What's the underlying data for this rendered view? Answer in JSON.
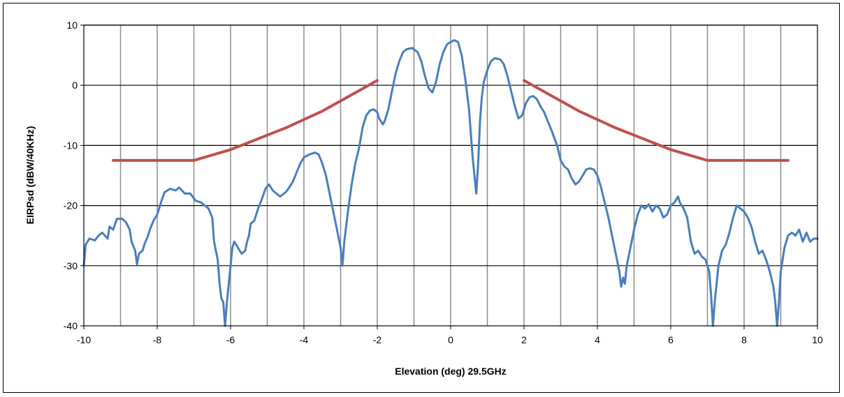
{
  "chart_data": {
    "type": "line",
    "title": "",
    "xlabel": "Elevation (deg) 29.5GHz",
    "ylabel": "EIRPsd (dBW/40KHz)",
    "xlim": [
      -10,
      10
    ],
    "ylim": [
      -40,
      10
    ],
    "x_ticks": [
      -10,
      -8,
      -6,
      -4,
      -2,
      0,
      2,
      4,
      6,
      8,
      10
    ],
    "y_ticks": [
      10,
      0,
      -10,
      -20,
      -30,
      -40
    ],
    "vertical_grid_every": 1,
    "horizontal_grid_every": 10,
    "legend": "none",
    "series": [
      {
        "color": "#4a7ebb",
        "points": [
          [
            -10.0,
            -30.0
          ],
          [
            -9.95,
            -26.5
          ],
          [
            -9.85,
            -25.5
          ],
          [
            -9.7,
            -25.8
          ],
          [
            -9.6,
            -25.0
          ],
          [
            -9.5,
            -24.5
          ],
          [
            -9.35,
            -25.5
          ],
          [
            -9.3,
            -23.5
          ],
          [
            -9.2,
            -24.0
          ],
          [
            -9.1,
            -22.2
          ],
          [
            -8.95,
            -22.2
          ],
          [
            -8.85,
            -22.8
          ],
          [
            -8.75,
            -24.0
          ],
          [
            -8.7,
            -26.0
          ],
          [
            -8.6,
            -27.5
          ],
          [
            -8.55,
            -29.8
          ],
          [
            -8.5,
            -28.0
          ],
          [
            -8.4,
            -27.5
          ],
          [
            -8.35,
            -26.5
          ],
          [
            -8.25,
            -25.0
          ],
          [
            -8.2,
            -24.0
          ],
          [
            -8.1,
            -22.5
          ],
          [
            -8.0,
            -21.5
          ],
          [
            -7.9,
            -19.5
          ],
          [
            -7.8,
            -17.8
          ],
          [
            -7.65,
            -17.2
          ],
          [
            -7.5,
            -17.5
          ],
          [
            -7.4,
            -17.0
          ],
          [
            -7.25,
            -18.0
          ],
          [
            -7.1,
            -18.0
          ],
          [
            -6.95,
            -19.2
          ],
          [
            -6.8,
            -19.5
          ],
          [
            -6.7,
            -20.0
          ],
          [
            -6.6,
            -20.5
          ],
          [
            -6.5,
            -22.0
          ],
          [
            -6.45,
            -26.0
          ],
          [
            -6.35,
            -29.0
          ],
          [
            -6.3,
            -33.0
          ],
          [
            -6.25,
            -35.5
          ],
          [
            -6.2,
            -36.0
          ],
          [
            -6.15,
            -40.0
          ],
          [
            -6.1,
            -36.0
          ],
          [
            -6.05,
            -33.0
          ],
          [
            -6.0,
            -30.0
          ],
          [
            -5.95,
            -27.0
          ],
          [
            -5.9,
            -26.0
          ],
          [
            -5.8,
            -27.0
          ],
          [
            -5.75,
            -27.5
          ],
          [
            -5.7,
            -28.0
          ],
          [
            -5.6,
            -27.5
          ],
          [
            -5.55,
            -26.0
          ],
          [
            -5.5,
            -25.0
          ],
          [
            -5.45,
            -23.0
          ],
          [
            -5.35,
            -22.5
          ],
          [
            -5.25,
            -20.5
          ],
          [
            -5.15,
            -19.0
          ],
          [
            -5.05,
            -17.2
          ],
          [
            -4.95,
            -16.5
          ],
          [
            -4.85,
            -17.5
          ],
          [
            -4.75,
            -18.0
          ],
          [
            -4.65,
            -18.5
          ],
          [
            -4.5,
            -17.8
          ],
          [
            -4.4,
            -17.0
          ],
          [
            -4.3,
            -16.0
          ],
          [
            -4.2,
            -14.5
          ],
          [
            -4.1,
            -13.0
          ],
          [
            -4.0,
            -12.0
          ],
          [
            -3.85,
            -11.5
          ],
          [
            -3.7,
            -11.2
          ],
          [
            -3.6,
            -11.5
          ],
          [
            -3.5,
            -13.0
          ],
          [
            -3.4,
            -15.0
          ],
          [
            -3.3,
            -18.0
          ],
          [
            -3.2,
            -21.0
          ],
          [
            -3.1,
            -24.0
          ],
          [
            -3.0,
            -27.0
          ],
          [
            -2.95,
            -30.0
          ],
          [
            -2.9,
            -26.0
          ],
          [
            -2.8,
            -21.0
          ],
          [
            -2.7,
            -16.5
          ],
          [
            -2.6,
            -13.0
          ],
          [
            -2.5,
            -10.5
          ],
          [
            -2.4,
            -7.0
          ],
          [
            -2.3,
            -5.0
          ],
          [
            -2.2,
            -4.2
          ],
          [
            -2.1,
            -4.0
          ],
          [
            -2.0,
            -4.5
          ],
          [
            -1.95,
            -5.5
          ],
          [
            -1.85,
            -6.5
          ],
          [
            -1.8,
            -6.0
          ],
          [
            -1.7,
            -4.0
          ],
          [
            -1.6,
            -1.0
          ],
          [
            -1.5,
            2.0
          ],
          [
            -1.4,
            4.0
          ],
          [
            -1.3,
            5.5
          ],
          [
            -1.2,
            6.0
          ],
          [
            -1.05,
            6.2
          ],
          [
            -0.9,
            5.5
          ],
          [
            -0.8,
            4.0
          ],
          [
            -0.7,
            1.5
          ],
          [
            -0.6,
            -0.5
          ],
          [
            -0.5,
            -1.2
          ],
          [
            -0.4,
            0.5
          ],
          [
            -0.3,
            3.5
          ],
          [
            -0.2,
            5.5
          ],
          [
            -0.1,
            6.8
          ],
          [
            0.0,
            7.2
          ],
          [
            0.1,
            7.5
          ],
          [
            0.2,
            7.2
          ],
          [
            0.3,
            5.0
          ],
          [
            0.4,
            1.0
          ],
          [
            0.5,
            -4.0
          ],
          [
            0.55,
            -8.0
          ],
          [
            0.6,
            -12.0
          ],
          [
            0.65,
            -15.0
          ],
          [
            0.7,
            -18.0
          ],
          [
            0.75,
            -13.0
          ],
          [
            0.8,
            -6.0
          ],
          [
            0.85,
            -2.0
          ],
          [
            0.9,
            0.5
          ],
          [
            1.0,
            2.5
          ],
          [
            1.1,
            4.0
          ],
          [
            1.2,
            4.5
          ],
          [
            1.35,
            4.3
          ],
          [
            1.45,
            3.5
          ],
          [
            1.55,
            1.5
          ],
          [
            1.65,
            -1.0
          ],
          [
            1.75,
            -3.5
          ],
          [
            1.85,
            -5.5
          ],
          [
            1.95,
            -5.0
          ],
          [
            2.05,
            -3.0
          ],
          [
            2.15,
            -2.0
          ],
          [
            2.25,
            -1.8
          ],
          [
            2.35,
            -2.3
          ],
          [
            2.45,
            -3.5
          ],
          [
            2.55,
            -4.5
          ],
          [
            2.65,
            -6.0
          ],
          [
            2.75,
            -7.5
          ],
          [
            2.9,
            -10.0
          ],
          [
            3.0,
            -12.5
          ],
          [
            3.1,
            -13.5
          ],
          [
            3.2,
            -14.0
          ],
          [
            3.3,
            -15.5
          ],
          [
            3.4,
            -16.5
          ],
          [
            3.5,
            -16.0
          ],
          [
            3.6,
            -15.0
          ],
          [
            3.7,
            -14.0
          ],
          [
            3.8,
            -13.8
          ],
          [
            3.9,
            -14.0
          ],
          [
            4.0,
            -15.0
          ],
          [
            4.1,
            -17.0
          ],
          [
            4.2,
            -19.5
          ],
          [
            4.3,
            -22.0
          ],
          [
            4.4,
            -25.0
          ],
          [
            4.5,
            -28.0
          ],
          [
            4.6,
            -31.0
          ],
          [
            4.65,
            -33.5
          ],
          [
            4.7,
            -32.0
          ],
          [
            4.75,
            -33.0
          ],
          [
            4.8,
            -30.0
          ],
          [
            4.9,
            -27.0
          ],
          [
            5.0,
            -24.0
          ],
          [
            5.1,
            -21.5
          ],
          [
            5.2,
            -20.0
          ],
          [
            5.3,
            -20.5
          ],
          [
            5.4,
            -19.8
          ],
          [
            5.5,
            -21.0
          ],
          [
            5.6,
            -20.0
          ],
          [
            5.7,
            -20.5
          ],
          [
            5.8,
            -22.0
          ],
          [
            5.9,
            -21.5
          ],
          [
            6.0,
            -20.0
          ],
          [
            6.1,
            -19.5
          ],
          [
            6.2,
            -18.5
          ],
          [
            6.25,
            -19.5
          ],
          [
            6.35,
            -20.5
          ],
          [
            6.45,
            -22.0
          ],
          [
            6.55,
            -26.0
          ],
          [
            6.65,
            -28.0
          ],
          [
            6.75,
            -27.5
          ],
          [
            6.85,
            -28.5
          ],
          [
            6.95,
            -29.0
          ],
          [
            7.05,
            -31.0
          ],
          [
            7.1,
            -35.0
          ],
          [
            7.15,
            -40.0
          ],
          [
            7.2,
            -36.0
          ],
          [
            7.3,
            -30.0
          ],
          [
            7.4,
            -27.5
          ],
          [
            7.5,
            -26.5
          ],
          [
            7.6,
            -24.5
          ],
          [
            7.7,
            -22.0
          ],
          [
            7.8,
            -20.0
          ],
          [
            7.9,
            -20.5
          ],
          [
            8.0,
            -21.0
          ],
          [
            8.1,
            -22.0
          ],
          [
            8.2,
            -23.5
          ],
          [
            8.3,
            -26.0
          ],
          [
            8.4,
            -28.0
          ],
          [
            8.5,
            -27.5
          ],
          [
            8.6,
            -29.0
          ],
          [
            8.7,
            -31.0
          ],
          [
            8.8,
            -33.5
          ],
          [
            8.85,
            -36.0
          ],
          [
            8.9,
            -40.0
          ],
          [
            8.95,
            -36.0
          ],
          [
            9.0,
            -31.0
          ],
          [
            9.1,
            -27.0
          ],
          [
            9.2,
            -25.0
          ],
          [
            9.3,
            -24.5
          ],
          [
            9.4,
            -25.0
          ],
          [
            9.5,
            -24.0
          ],
          [
            9.6,
            -26.0
          ],
          [
            9.7,
            -24.5
          ],
          [
            9.8,
            -26.0
          ],
          [
            9.9,
            -25.5
          ],
          [
            10.0,
            -25.5
          ]
        ]
      },
      {
        "color": "#c0504d",
        "points": [
          [
            -9.2,
            -12.5
          ],
          [
            -7.0,
            -12.5
          ],
          [
            -6.5,
            -11.6
          ],
          [
            -6.0,
            -10.7
          ],
          [
            -5.5,
            -9.5
          ],
          [
            -5.0,
            -8.3
          ],
          [
            -4.5,
            -7.1
          ],
          [
            -4.0,
            -5.7
          ],
          [
            -3.5,
            -4.3
          ],
          [
            -3.0,
            -2.6
          ],
          [
            -2.5,
            -0.9
          ],
          [
            -2.0,
            0.8
          ]
        ]
      },
      {
        "color": "#c0504d",
        "points": [
          [
            2.0,
            0.8
          ],
          [
            2.5,
            -0.9
          ],
          [
            3.0,
            -2.6
          ],
          [
            3.5,
            -4.3
          ],
          [
            4.0,
            -5.7
          ],
          [
            4.5,
            -7.1
          ],
          [
            5.0,
            -8.3
          ],
          [
            5.5,
            -9.5
          ],
          [
            6.0,
            -10.7
          ],
          [
            6.5,
            -11.6
          ],
          [
            7.0,
            -12.5
          ],
          [
            9.2,
            -12.5
          ]
        ]
      }
    ]
  }
}
